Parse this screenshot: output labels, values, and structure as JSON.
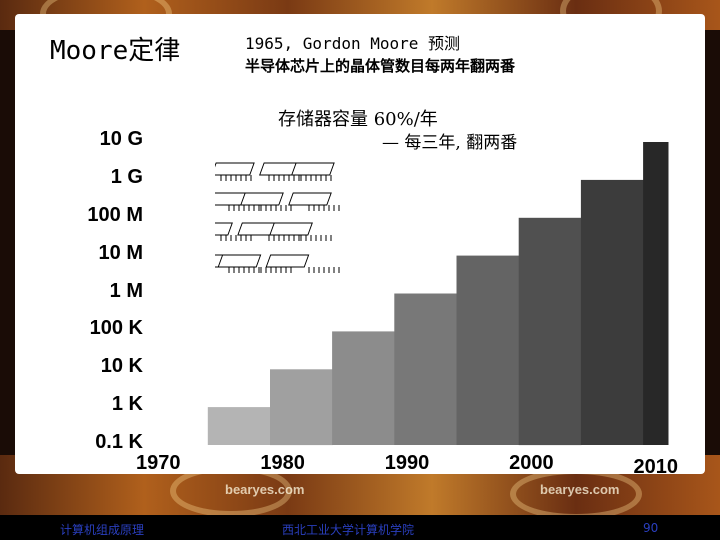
{
  "slide": {
    "title": "Moore定律",
    "subtitle_line1": "1965, Gordon Moore  预测",
    "subtitle_line2": "半导体芯片上的晶体管数目每两年翻两番",
    "annotation_line1": "存储器容量    60%/年",
    "annotation_line2": "— 每三年, 翻两番"
  },
  "chart_data": {
    "type": "bar",
    "y_scale": "log",
    "y_ticks": [
      "10 G",
      "1 G",
      "100 M",
      "10 M",
      "1 M",
      "100 K",
      "10 K",
      "1 K",
      "0.1 K"
    ],
    "x_ticks": [
      "1970",
      "1980",
      "1990",
      "2000",
      "2010"
    ],
    "xlim": [
      1970,
      2011
    ],
    "steps": [
      {
        "year": 1970,
        "value": "0.1 K"
      },
      {
        "year": 1974,
        "value": "1 K"
      },
      {
        "year": 1979,
        "value": "10 K"
      },
      {
        "year": 1984,
        "value": "100 K"
      },
      {
        "year": 1989,
        "value": "1 M"
      },
      {
        "year": 1994,
        "value": "10 M"
      },
      {
        "year": 1999,
        "value": "100 M"
      },
      {
        "year": 2004,
        "value": "1 G"
      },
      {
        "year": 2009,
        "value": "10 G"
      }
    ],
    "step_log10_values": [
      2,
      3,
      4,
      5,
      6,
      7,
      8,
      9,
      10
    ]
  },
  "watermarks": [
    "bearyes.com",
    "bearyes.com"
  ],
  "footer": {
    "left": "计算机组成原理",
    "center": "西北工业大学计算机学院",
    "page": "90"
  },
  "colors": {
    "bar_dark": "#2a2a2a",
    "bar_light": "#d8d8d8",
    "footer_text": "#2a3fbf",
    "slide_bg": "#ffffff"
  }
}
